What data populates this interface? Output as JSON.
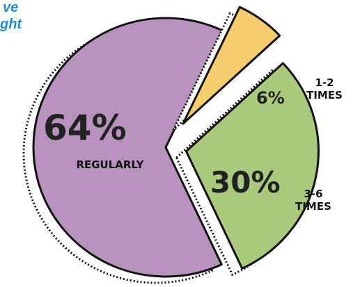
{
  "chart_data": {
    "type": "pie",
    "annotations": [
      "ve",
      "ght"
    ],
    "categories": [
      "REGULARLY",
      "1-2 TIMES",
      "3-6 TIMES"
    ],
    "values": [
      64,
      6,
      30
    ],
    "value_labels": [
      "64%",
      "6%",
      "30%"
    ],
    "colors": [
      "#b893bd",
      "#f6cd6e",
      "#a9c97c"
    ]
  }
}
